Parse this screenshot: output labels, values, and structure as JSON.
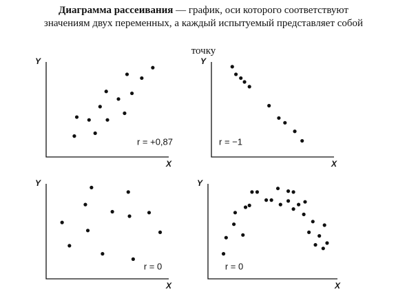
{
  "title": {
    "term": "Диаграмма рассеивания",
    "line1": " — график, оси которого соответствуют",
    "line2": "значениям двух переменных, а каждый испытуемый представляет собой",
    "line3": "точку"
  },
  "chart_data": [
    {
      "type": "scatter",
      "x_label": "X",
      "y_label": "Y",
      "annotation": "r = +0,87",
      "color": "#111",
      "xlim": [
        0,
        10
      ],
      "ylim": [
        0,
        10
      ],
      "x": [
        2.3,
        2.5,
        3.5,
        4.0,
        4.4,
        4.9,
        5.0,
        5.9,
        6.4,
        6.6,
        7.0,
        7.8,
        8.7
      ],
      "values": [
        2.2,
        4.2,
        3.9,
        2.5,
        5.3,
        6.9,
        3.9,
        6.1,
        4.6,
        8.7,
        6.7,
        8.3,
        9.4
      ]
    },
    {
      "type": "scatter",
      "x_label": "X",
      "y_label": "Y",
      "annotation": "r = −1",
      "color": "#111",
      "xlim": [
        0,
        10
      ],
      "ylim": [
        0,
        10
      ],
      "x": [
        1.7,
        2.0,
        2.4,
        2.7,
        3.1,
        4.7,
        5.5,
        6.0,
        6.8,
        7.4
      ],
      "values": [
        9.5,
        8.7,
        8.3,
        7.9,
        7.4,
        5.4,
        4.1,
        3.6,
        2.7,
        1.7
      ]
    },
    {
      "type": "scatter",
      "x_label": "X",
      "y_label": "Y",
      "annotation": "r = 0",
      "color": "#111",
      "xlim": [
        0,
        10
      ],
      "ylim": [
        0,
        11
      ],
      "x": [
        1.3,
        1.9,
        3.2,
        3.4,
        3.7,
        4.6,
        5.4,
        6.7,
        6.8,
        7.1,
        8.4,
        9.3
      ],
      "values": [
        6.3,
        3.7,
        8.3,
        5.4,
        10.2,
        2.8,
        7.5,
        9.7,
        7.0,
        2.2,
        7.4,
        5.2
      ]
    },
    {
      "type": "scatter",
      "x_label": "X",
      "y_label": "Y",
      "annotation": "r = 0",
      "color": "#111",
      "xlim": [
        0,
        10
      ],
      "ylim": [
        0,
        11
      ],
      "x": [
        1.2,
        1.4,
        2.0,
        2.1,
        2.7,
        2.9,
        3.2,
        3.4,
        3.8,
        4.5,
        4.9,
        5.4,
        5.6,
        6.2,
        6.2,
        6.6,
        6.6,
        7.0,
        7.4,
        7.5,
        7.8,
        8.1,
        8.3,
        8.6,
        8.9,
        9.0,
        9.2
      ],
      "values": [
        2.8,
        4.6,
        6.1,
        7.4,
        4.9,
        8.0,
        8.2,
        9.7,
        9.7,
        8.8,
        8.8,
        10.1,
        8.3,
        9.8,
        8.7,
        9.7,
        7.8,
        8.3,
        7.2,
        8.6,
        5.2,
        6.4,
        3.8,
        4.8,
        3.4,
        6.0,
        4.0
      ]
    }
  ]
}
